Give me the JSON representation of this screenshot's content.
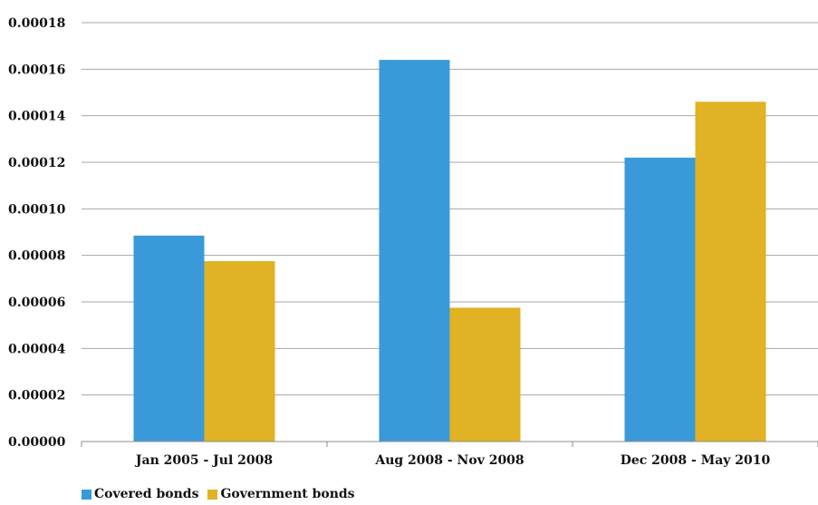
{
  "chart_data": {
    "type": "bar",
    "title": "",
    "xlabel": "",
    "ylabel": "",
    "categories": [
      "Jan 2005 - Jul 2008",
      "Aug 2008 - Nov 2008",
      "Dec 2008 - May 2010"
    ],
    "series": [
      {
        "name": "Covered bonds",
        "color": "#3a9ad9",
        "values": [
          8.85e-05,
          0.000164,
          0.000122
        ]
      },
      {
        "name": "Government bonds",
        "color": "#e0b224",
        "values": [
          7.75e-05,
          5.75e-05,
          0.000146
        ]
      }
    ],
    "ylim": [
      0,
      0.00018
    ],
    "yticks": [
      "0.00000",
      "0.00002",
      "0.00004",
      "0.00006",
      "0.00008",
      "0.00010",
      "0.00012",
      "0.00014",
      "0.00016",
      "0.00018"
    ],
    "grid": true,
    "legend_position": "bottom-left"
  }
}
